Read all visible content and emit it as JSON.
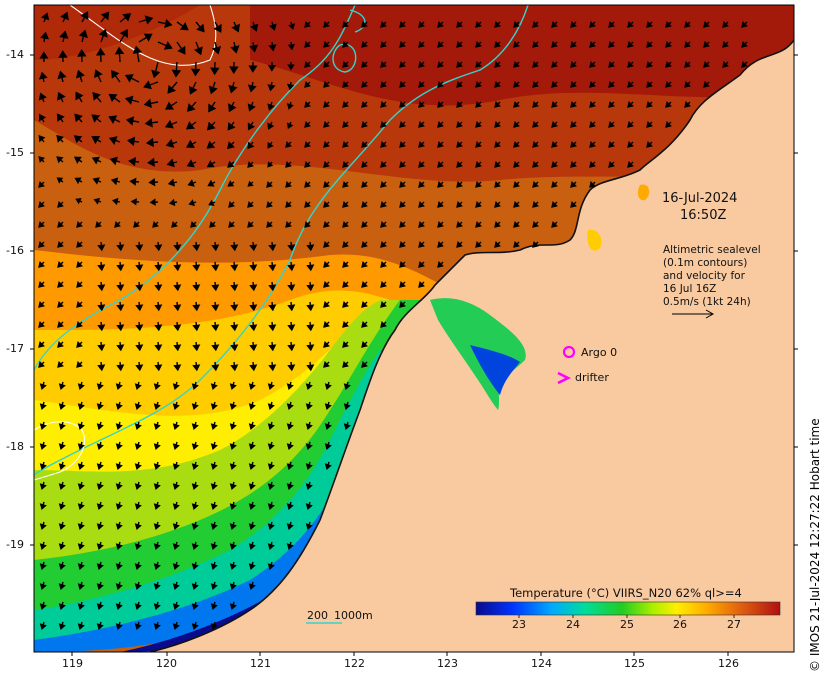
{
  "map": {
    "lat_labels": [
      "-14",
      "-15",
      "-16",
      "-17",
      "-18",
      "-19"
    ],
    "lon_labels": [
      "119",
      "120",
      "121",
      "122",
      "123",
      "124",
      "125",
      "126"
    ],
    "extent": {
      "lon_min": 118.6,
      "lon_max": 126.7,
      "lat_min": -20.1,
      "lat_max": -13.5
    },
    "colors": {
      "land": "#f9c9a0",
      "shelf_contour": "#33d4cc",
      "sealevel_contour": "#ffffff",
      "argo": "#ff00ff",
      "drifter": "#ff00ff"
    }
  },
  "annotation": {
    "date": "16-Jul-2024",
    "time": "16:50Z",
    "altimetry_lines": [
      "Altimetric sealevel",
      "(0.1m contours)",
      "and velocity for",
      "16 Jul 16Z",
      "0.5m/s (1kt 24h)"
    ]
  },
  "legend": {
    "argo_label": "Argo 0",
    "drifter_label": "drifter",
    "depth_labels": {
      "a": "200",
      "b": "1000m"
    }
  },
  "colorbar": {
    "title": "Temperature (°C) VIIRS_N20 62% ql>=4",
    "ticks": [
      "23",
      "24",
      "25",
      "26",
      "27"
    ],
    "range": [
      22.3,
      27.9
    ]
  },
  "copyright": "© IMOS 21-Jul-2024 12:27:22 Hobart time"
}
